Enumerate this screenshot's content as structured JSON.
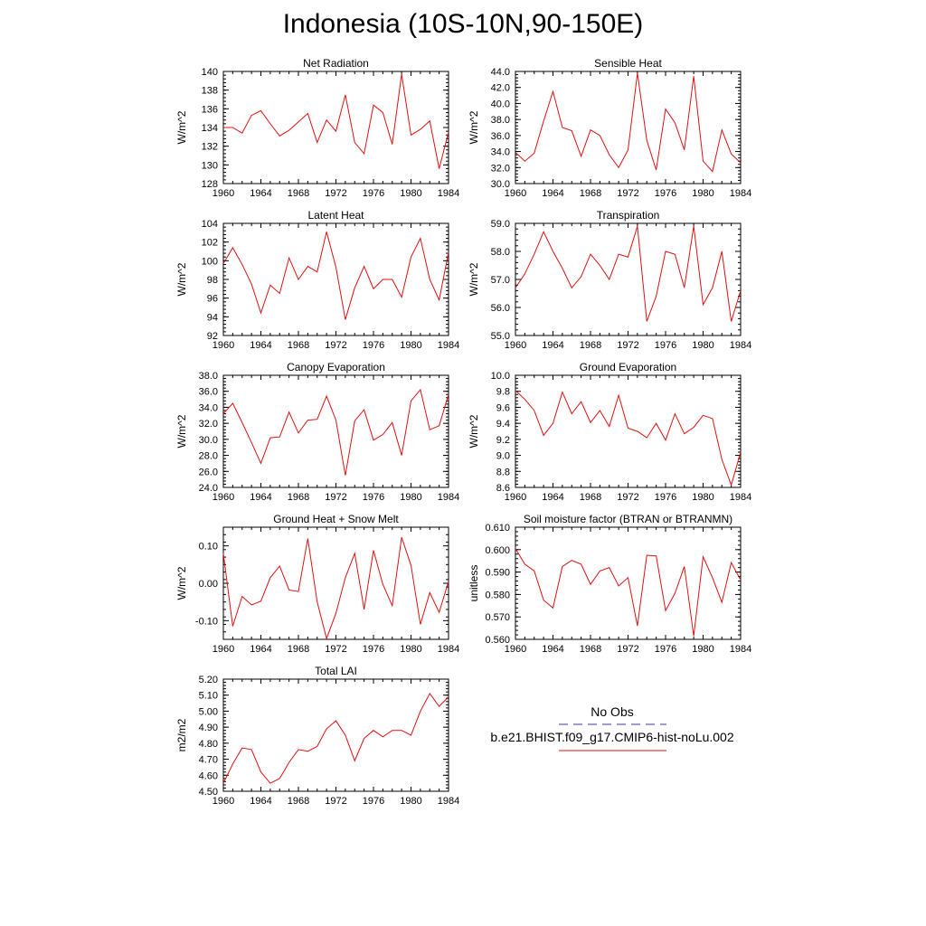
{
  "title": "Indonesia (10S-10N,90-150E)",
  "legend": {
    "items": [
      {
        "label": "No Obs",
        "color": "#3a3aa0",
        "dash": true
      },
      {
        "label": "b.e21.BHIST.f09_g17.CMIP6-hist-noLu.002",
        "color": "#e01010",
        "dash": false
      }
    ]
  },
  "chart_data": [
    {
      "type": "line",
      "title": "Net Radiation",
      "ylabel": "W/m^2",
      "ylim": [
        128,
        140
      ],
      "yticks": [
        128,
        130,
        132,
        134,
        136,
        138,
        140
      ],
      "ytick_labels": [
        "128",
        "130",
        "132",
        "134",
        "136",
        "138",
        "140"
      ],
      "xlim": [
        1960,
        1984
      ],
      "xticks": [
        "1960",
        "1964",
        "1968",
        "1972",
        "1976",
        "1980",
        "1984"
      ],
      "color": "#e01010",
      "x": [
        1960,
        1961,
        1962,
        1963,
        1964,
        1965,
        1966,
        1967,
        1968,
        1969,
        1970,
        1971,
        1972,
        1973,
        1974,
        1975,
        1976,
        1977,
        1978,
        1979,
        1980,
        1981,
        1982,
        1983,
        1984
      ],
      "y": [
        134.0,
        134.0,
        133.4,
        135.3,
        135.8,
        134.4,
        133.1,
        133.7,
        134.6,
        135.5,
        132.4,
        134.8,
        133.6,
        137.5,
        132.4,
        131.2,
        136.4,
        135.6,
        132.2,
        139.7,
        133.2,
        133.8,
        134.7,
        129.6,
        133.5
      ]
    },
    {
      "type": "line",
      "title": "Sensible Heat",
      "ylabel": "W/m^2",
      "ylim": [
        30,
        44
      ],
      "yticks": [
        30,
        32,
        34,
        36,
        38,
        40,
        42,
        44
      ],
      "ytick_labels": [
        "30.0",
        "32.0",
        "34.0",
        "36.0",
        "38.0",
        "40.0",
        "42.0",
        "44.0"
      ],
      "xlim": [
        1960,
        1984
      ],
      "xticks": [
        "1960",
        "1964",
        "1968",
        "1972",
        "1976",
        "1980",
        "1984"
      ],
      "color": "#e01010",
      "x": [
        1960,
        1961,
        1962,
        1963,
        1964,
        1965,
        1966,
        1967,
        1968,
        1969,
        1970,
        1971,
        1972,
        1973,
        1974,
        1975,
        1976,
        1977,
        1978,
        1979,
        1980,
        1981,
        1982,
        1983,
        1984
      ],
      "y": [
        33.9,
        32.8,
        33.8,
        37.8,
        41.5,
        37.0,
        36.6,
        33.4,
        36.7,
        36.0,
        33.6,
        32.0,
        34.2,
        43.8,
        35.4,
        31.7,
        39.3,
        37.6,
        34.2,
        43.4,
        32.8,
        31.5,
        36.7,
        33.7,
        32.6
      ]
    },
    {
      "type": "line",
      "title": "Latent Heat",
      "ylabel": "W/m^2",
      "ylim": [
        92,
        104
      ],
      "yticks": [
        92,
        94,
        96,
        98,
        100,
        102,
        104
      ],
      "ytick_labels": [
        "92",
        "94",
        "96",
        "98",
        "100",
        "102",
        "104"
      ],
      "xlim": [
        1960,
        1984
      ],
      "xticks": [
        "1960",
        "1964",
        "1968",
        "1972",
        "1976",
        "1980",
        "1984"
      ],
      "color": "#e01010",
      "x": [
        1960,
        1961,
        1962,
        1963,
        1964,
        1965,
        1966,
        1967,
        1968,
        1969,
        1970,
        1971,
        1972,
        1973,
        1974,
        1975,
        1976,
        1977,
        1978,
        1979,
        1980,
        1981,
        1982,
        1983,
        1984
      ],
      "y": [
        99.7,
        101.4,
        99.6,
        97.5,
        94.4,
        97.4,
        96.5,
        100.3,
        98.0,
        99.4,
        98.8,
        103.1,
        99.3,
        93.7,
        97.1,
        99.4,
        97.0,
        98.0,
        98.0,
        96.1,
        100.4,
        102.4,
        98.0,
        95.8,
        100.9
      ]
    },
    {
      "type": "line",
      "title": "Transpiration",
      "ylabel": "W/m^2",
      "ylim": [
        55,
        59
      ],
      "yticks": [
        55,
        56,
        57,
        58,
        59
      ],
      "ytick_labels": [
        "55.0",
        "56.0",
        "57.0",
        "58.0",
        "59.0"
      ],
      "xlim": [
        1960,
        1984
      ],
      "xticks": [
        "1960",
        "1964",
        "1968",
        "1972",
        "1976",
        "1980",
        "1984"
      ],
      "color": "#e01010",
      "x": [
        1960,
        1961,
        1962,
        1963,
        1964,
        1965,
        1966,
        1967,
        1968,
        1969,
        1970,
        1971,
        1972,
        1973,
        1974,
        1975,
        1976,
        1977,
        1978,
        1979,
        1980,
        1981,
        1982,
        1983,
        1984
      ],
      "y": [
        56.7,
        57.2,
        57.9,
        58.7,
        58.0,
        57.4,
        56.7,
        57.1,
        57.9,
        57.5,
        57.0,
        57.9,
        57.8,
        58.9,
        55.5,
        56.4,
        58.0,
        57.9,
        56.7,
        58.9,
        56.1,
        56.7,
        58.0,
        55.5,
        56.6
      ]
    },
    {
      "type": "line",
      "title": "Canopy Evaporation",
      "ylabel": "W/m^2",
      "ylim": [
        24,
        38
      ],
      "yticks": [
        24,
        26,
        28,
        30,
        32,
        34,
        36,
        38
      ],
      "ytick_labels": [
        "24.0",
        "26.0",
        "28.0",
        "30.0",
        "32.0",
        "34.0",
        "36.0",
        "38.0"
      ],
      "xlim": [
        1960,
        1984
      ],
      "xticks": [
        "1960",
        "1964",
        "1968",
        "1972",
        "1976",
        "1980",
        "1984"
      ],
      "color": "#e01010",
      "x": [
        1960,
        1961,
        1962,
        1963,
        1964,
        1965,
        1966,
        1967,
        1968,
        1969,
        1970,
        1971,
        1972,
        1973,
        1974,
        1975,
        1976,
        1977,
        1978,
        1979,
        1980,
        1981,
        1982,
        1983,
        1984
      ],
      "y": [
        33.2,
        34.5,
        32.1,
        29.6,
        27.0,
        30.2,
        30.3,
        33.4,
        30.8,
        32.4,
        32.5,
        35.4,
        32.4,
        25.5,
        32.3,
        33.7,
        29.9,
        30.6,
        32.1,
        28.0,
        34.8,
        36.2,
        31.2,
        31.7,
        35.6
      ]
    },
    {
      "type": "line",
      "title": "Ground Evaporation",
      "ylabel": "W/m^2",
      "ylim": [
        8.6,
        10.0
      ],
      "yticks": [
        8.6,
        8.8,
        9.0,
        9.2,
        9.4,
        9.6,
        9.8,
        10.0
      ],
      "ytick_labels": [
        "8.6",
        "8.8",
        "9.0",
        "9.2",
        "9.4",
        "9.6",
        "9.8",
        "10.0"
      ],
      "xlim": [
        1960,
        1984
      ],
      "xticks": [
        "1960",
        "1964",
        "1968",
        "1972",
        "1976",
        "1980",
        "1984"
      ],
      "color": "#e01010",
      "x": [
        1960,
        1961,
        1962,
        1963,
        1964,
        1965,
        1966,
        1967,
        1968,
        1969,
        1970,
        1971,
        1972,
        1973,
        1974,
        1975,
        1976,
        1977,
        1978,
        1979,
        1980,
        1981,
        1982,
        1983,
        1984
      ],
      "y": [
        9.81,
        9.7,
        9.56,
        9.25,
        9.4,
        9.79,
        9.52,
        9.67,
        9.41,
        9.56,
        9.36,
        9.75,
        9.34,
        9.3,
        9.22,
        9.4,
        9.19,
        9.52,
        9.27,
        9.35,
        9.5,
        9.46,
        8.95,
        8.63,
        9.04
      ]
    },
    {
      "type": "line",
      "title": "Ground Heat + Snow Melt",
      "ylabel": "W/m^2",
      "ylim": [
        -0.15,
        0.15
      ],
      "yticks": [
        -0.1,
        0.0,
        0.1
      ],
      "ytick_labels": [
        "-0.10",
        "0.00",
        "0.10"
      ],
      "xlim": [
        1960,
        1984
      ],
      "xticks": [
        "1960",
        "1964",
        "1968",
        "1972",
        "1976",
        "1980",
        "1984"
      ],
      "color": "#e01010",
      "x": [
        1960,
        1961,
        1962,
        1963,
        1964,
        1965,
        1966,
        1967,
        1968,
        1969,
        1970,
        1971,
        1972,
        1973,
        1974,
        1975,
        1976,
        1977,
        1978,
        1979,
        1980,
        1981,
        1982,
        1983,
        1984
      ],
      "y": [
        0.08,
        -0.115,
        -0.035,
        -0.058,
        -0.048,
        0.015,
        0.046,
        -0.018,
        -0.022,
        0.12,
        -0.05,
        -0.148,
        -0.08,
        0.015,
        0.08,
        -0.07,
        0.088,
        -0.003,
        -0.06,
        0.123,
        0.048,
        -0.11,
        -0.025,
        -0.078,
        0.005
      ]
    },
    {
      "type": "line",
      "title": "Soil moisture factor (BTRAN or BTRANMN)",
      "ylabel": "unitless",
      "ylim": [
        0.56,
        0.61
      ],
      "yticks": [
        0.56,
        0.57,
        0.58,
        0.59,
        0.6,
        0.61
      ],
      "ytick_labels": [
        "0.560",
        "0.570",
        "0.580",
        "0.590",
        "0.600",
        "0.610"
      ],
      "xlim": [
        1960,
        1984
      ],
      "xticks": [
        "1960",
        "1964",
        "1968",
        "1972",
        "1976",
        "1980",
        "1984"
      ],
      "color": "#e01010",
      "x": [
        1960,
        1961,
        1962,
        1963,
        1964,
        1965,
        1966,
        1967,
        1968,
        1969,
        1970,
        1971,
        1972,
        1973,
        1974,
        1975,
        1976,
        1977,
        1978,
        1979,
        1980,
        1981,
        1982,
        1983,
        1984
      ],
      "y": [
        0.6005,
        0.5935,
        0.5905,
        0.5775,
        0.574,
        0.5925,
        0.5952,
        0.5935,
        0.5845,
        0.5905,
        0.592,
        0.5838,
        0.5875,
        0.566,
        0.5975,
        0.5972,
        0.5728,
        0.5805,
        0.5925,
        0.5615,
        0.5968,
        0.5875,
        0.5765,
        0.5942,
        0.5865
      ]
    },
    {
      "type": "line",
      "title": "Total LAI",
      "ylabel": "m2/m2",
      "ylim": [
        4.5,
        5.2
      ],
      "yticks": [
        4.5,
        4.6,
        4.7,
        4.8,
        4.9,
        5.0,
        5.1,
        5.2
      ],
      "ytick_labels": [
        "4.50",
        "4.60",
        "4.70",
        "4.80",
        "4.90",
        "5.00",
        "5.10",
        "5.20"
      ],
      "xlim": [
        1960,
        1984
      ],
      "xticks": [
        "1960",
        "1964",
        "1968",
        "1972",
        "1976",
        "1980",
        "1984"
      ],
      "color": "#e01010",
      "x": [
        1960,
        1961,
        1962,
        1963,
        1964,
        1965,
        1966,
        1967,
        1968,
        1969,
        1970,
        1971,
        1972,
        1973,
        1974,
        1975,
        1976,
        1977,
        1978,
        1979,
        1980,
        1981,
        1982,
        1983,
        1984
      ],
      "y": [
        4.55,
        4.67,
        4.77,
        4.76,
        4.62,
        4.55,
        4.58,
        4.68,
        4.76,
        4.75,
        4.78,
        4.89,
        4.94,
        4.85,
        4.69,
        4.83,
        4.88,
        4.84,
        4.88,
        4.88,
        4.85,
        5.0,
        5.11,
        5.03,
        5.09
      ]
    }
  ]
}
